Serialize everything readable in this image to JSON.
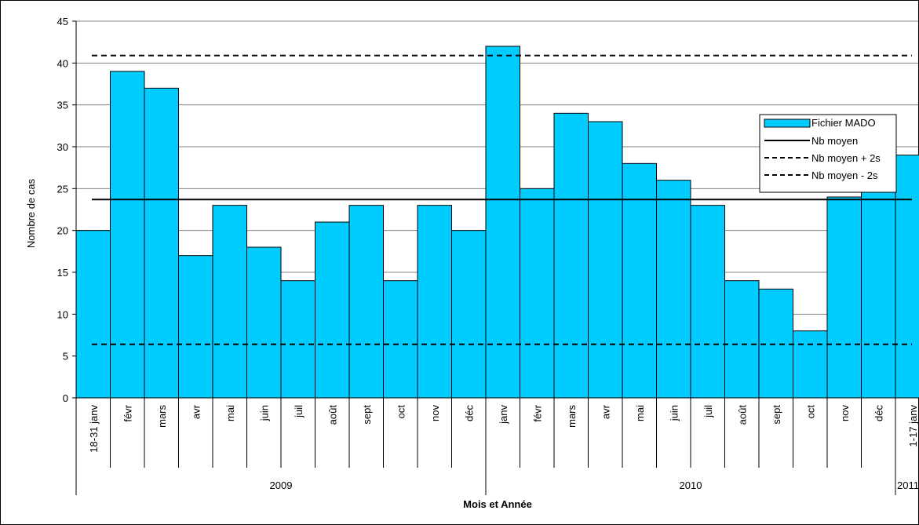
{
  "chart_data": {
    "type": "bar",
    "ylabel": "Nombre de cas",
    "xlabel": "Mois et Année",
    "ylim": [
      0,
      45
    ],
    "yticks": [
      0,
      5,
      10,
      15,
      20,
      25,
      30,
      35,
      40,
      45
    ],
    "grid": true,
    "legend_position": "top-right",
    "categories": [
      "18-31 janv",
      "févr",
      "mars",
      "avr",
      "mai",
      "juin",
      "juil",
      "août",
      "sept",
      "oct",
      "nov",
      "déc",
      "janv",
      "févr",
      "mars",
      "avr",
      "mai",
      "juin",
      "juil",
      "août",
      "sept",
      "oct",
      "nov",
      "déc",
      "1-17 janv"
    ],
    "groups": [
      {
        "label": "2009",
        "count": 12
      },
      {
        "label": "2010",
        "count": 12
      },
      {
        "label": "2011",
        "count": 1
      }
    ],
    "series": [
      {
        "name": "Fichier MADO",
        "color": "#00CCFF",
        "values": [
          20,
          39,
          37,
          17,
          23,
          18,
          14,
          21,
          23,
          14,
          23,
          20,
          42,
          25,
          34,
          33,
          28,
          26,
          23,
          14,
          13,
          8,
          24,
          27,
          29
        ]
      }
    ],
    "reference_lines": [
      {
        "name": "Nb moyen",
        "value": 23.7,
        "style": "solid"
      },
      {
        "name": "Nb moyen + 2s",
        "value": 40.9,
        "style": "dashed"
      },
      {
        "name": "Nb moyen - 2s",
        "value": 6.4,
        "style": "dashed"
      }
    ]
  }
}
